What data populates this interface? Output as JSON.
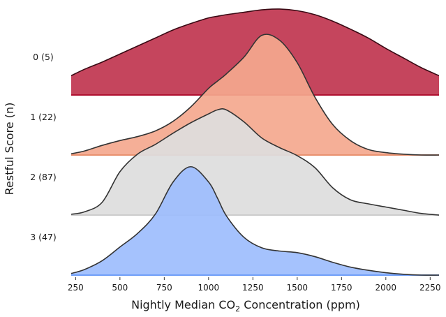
{
  "chart_data": {
    "type": "ridgeline",
    "xlabel": {
      "prefix": "Nightly Median CO",
      "subscript": "2",
      "suffix": " Concentration (ppm)"
    },
    "ylabel": "Restful Score (n)",
    "xlim": [
      225,
      2300
    ],
    "xticks": [
      250,
      500,
      750,
      1000,
      1250,
      1500,
      1750,
      2000,
      2250
    ],
    "x": [
      225,
      300,
      400,
      500,
      600,
      700,
      800,
      900,
      1000,
      1050,
      1100,
      1200,
      1300,
      1400,
      1500,
      1600,
      1700,
      1800,
      1900,
      2000,
      2100,
      2200,
      2300
    ],
    "series": [
      {
        "name": "0 (5)",
        "color": "#c0354f",
        "edge": "#b01030",
        "density": [
          0.24,
          0.32,
          0.41,
          0.51,
          0.61,
          0.71,
          0.81,
          0.89,
          0.96,
          0.98,
          1.0,
          1.03,
          1.06,
          1.07,
          1.05,
          1.0,
          0.92,
          0.82,
          0.71,
          0.58,
          0.46,
          0.34,
          0.24
        ]
      },
      {
        "name": "1 (22)",
        "color": "#f4a88e",
        "edge": "#e9916f",
        "density": [
          0.015,
          0.05,
          0.12,
          0.18,
          0.23,
          0.3,
          0.42,
          0.6,
          0.83,
          0.92,
          1.01,
          1.22,
          1.49,
          1.43,
          1.15,
          0.72,
          0.38,
          0.18,
          0.07,
          0.03,
          0.01,
          0.0,
          0.0
        ]
      },
      {
        "name": "2 (87)",
        "color": "#dddddd",
        "edge": "#cccccc",
        "density": [
          0.01,
          0.04,
          0.16,
          0.54,
          0.76,
          0.88,
          1.02,
          1.15,
          1.26,
          1.31,
          1.31,
          1.16,
          0.96,
          0.84,
          0.74,
          0.59,
          0.34,
          0.19,
          0.14,
          0.1,
          0.06,
          0.02,
          0.0
        ]
      },
      {
        "name": "3 (47)",
        "color": "#9dbdfd",
        "edge": "#6f9ef8",
        "density": [
          0.02,
          0.07,
          0.18,
          0.35,
          0.52,
          0.76,
          1.16,
          1.35,
          1.16,
          0.96,
          0.74,
          0.47,
          0.34,
          0.3,
          0.28,
          0.23,
          0.16,
          0.1,
          0.06,
          0.03,
          0.01,
          0.0,
          0.0
        ]
      }
    ],
    "grid": false,
    "legend": "none"
  }
}
